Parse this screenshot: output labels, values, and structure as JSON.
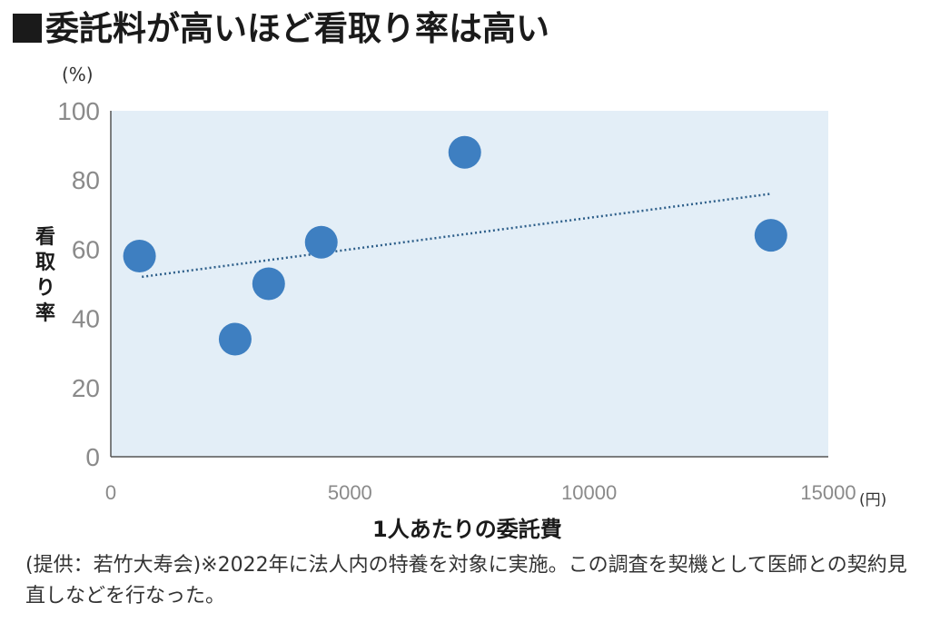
{
  "title": "委託料が高いほど看取り率は高い",
  "y_unit": "(%)",
  "x_unit": "(円)",
  "y_label_chars": [
    "看",
    "取",
    "り",
    "率"
  ],
  "x_label": "1人あたりの委託費",
  "note": "(提供：若竹大寿会)※2022年に法人内の特養を対象に実施。この調査を契機として医師との契約見直しなどを行なった。",
  "colors": {
    "plot_background": "#e3eef7",
    "point": "#3e7fc1",
    "trendline": "#2e5f8a",
    "axis": "#555555",
    "tick_text": "#8a8a8a"
  },
  "chart_data": {
    "type": "scatter",
    "title": "委託料が高いほど看取り率は高い",
    "xlabel": "1人あたりの委託費",
    "ylabel": "看取り率",
    "xlim": [
      0,
      15000
    ],
    "ylim": [
      0,
      100
    ],
    "x_ticks": [
      0,
      5000,
      10000,
      15000
    ],
    "y_ticks": [
      0,
      20,
      40,
      60,
      80,
      100
    ],
    "x_tick_labels": [
      "0",
      "5000",
      "10000",
      "15000"
    ],
    "y_tick_labels": [
      "0",
      "20",
      "40",
      "60",
      "80",
      "100"
    ],
    "grid": false,
    "points": [
      {
        "x": 600,
        "y": 58
      },
      {
        "x": 2600,
        "y": 34
      },
      {
        "x": 3300,
        "y": 50
      },
      {
        "x": 4400,
        "y": 62
      },
      {
        "x": 7400,
        "y": 88
      },
      {
        "x": 13800,
        "y": 64
      }
    ],
    "trendline": {
      "style": "dotted",
      "start": {
        "x": 650,
        "y": 52
      },
      "end": {
        "x": 13800,
        "y": 76
      }
    }
  }
}
